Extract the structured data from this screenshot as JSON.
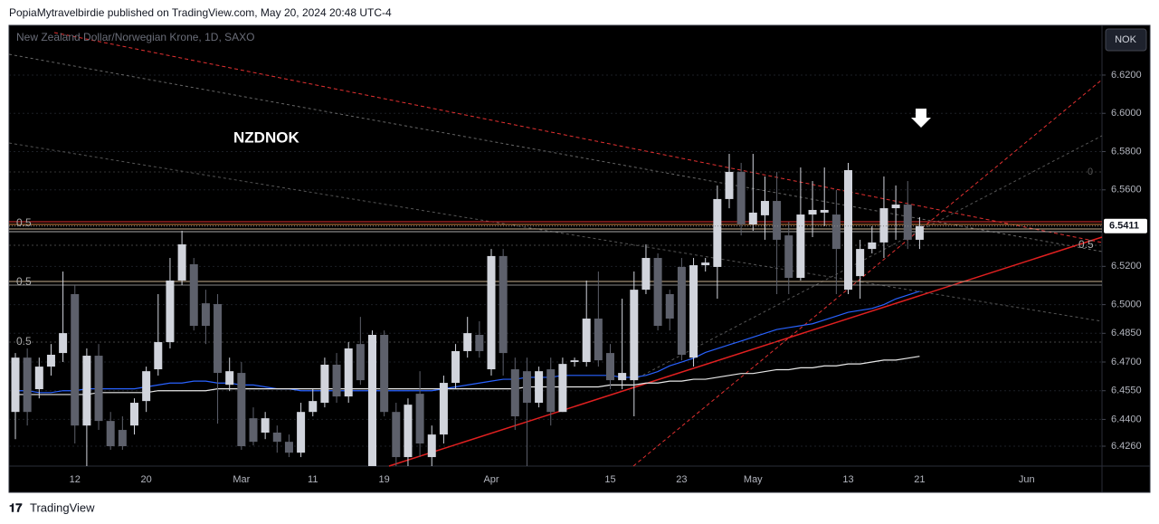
{
  "header": {
    "text": "PopiaMytravelbirdie published on TradingView.com, May 20, 2024 20:48 UTC-4"
  },
  "footer": {
    "brand": "TradingView"
  },
  "chart_data": {
    "type": "candlestick",
    "title": "NZDNOK",
    "subtitle": "New Zealand Dollar/Norwegian Krone, 1D, SAXO",
    "currency": "NOK",
    "categories": [
      null,
      null,
      null,
      null,
      null,
      "12",
      null,
      null,
      null,
      null,
      null,
      "20",
      null,
      null,
      null,
      null,
      null,
      null,
      null,
      "Mar",
      null,
      null,
      null,
      null,
      null,
      "11",
      null,
      null,
      null,
      null,
      null,
      "19",
      null,
      null,
      null,
      null,
      null,
      null,
      null,
      null,
      "Apr",
      null,
      null,
      null,
      null,
      null,
      null,
      null,
      null,
      null,
      "15",
      null,
      null,
      null,
      null,
      null,
      "23",
      null,
      null,
      null,
      null,
      null,
      "May",
      null,
      null,
      null,
      null,
      null,
      null,
      null,
      "13",
      null,
      null,
      null,
      null,
      null,
      "21",
      null,
      null,
      null,
      null,
      null,
      null,
      null,
      null,
      "Jun",
      null,
      null,
      null,
      null,
      null,
      null
    ],
    "open": [
      6.4439,
      6.4723,
      6.4558,
      6.4676,
      6.4747,
      6.5055,
      6.4368,
      6.4733,
      6.4392,
      6.4345,
      6.4368,
      6.4496,
      6.4662,
      6.4804,
      6.5126,
      6.5211,
      6.5007,
      6.5003,
      6.4581,
      6.4643,
      6.4406,
      6.4331,
      6.4331,
      6.4283,
      6.4226,
      6.4439,
      6.4487,
      6.4686,
      6.452,
      6.4794,
      6.4156,
      6.4842,
      6.4439,
      6.4203,
      6.4534,
      6.4203,
      6.4321,
      6.4591,
      6.4757,
      6.4842,
      6.4662,
      6.5254,
      6.4662,
      6.4652,
      6.4487,
      6.4662,
      6.4439,
      6.47,
      6.47,
      6.4927,
      6.4747,
      6.4605,
      6.4605,
      6.5078,
      6.5244,
      6.5055,
      6.5197,
      6.4723,
      6.5206,
      6.5197,
      6.5552,
      6.5694,
      6.5419,
      6.5467,
      6.5542,
      6.5362,
      6.514,
      6.5471,
      6.5481,
      6.5471,
      6.5078,
      6.5149,
      6.5291,
      6.5325,
      6.5504,
      6.5523,
      6.5339,
      null,
      null,
      null,
      null,
      null,
      null,
      null,
      null,
      null,
      null,
      null,
      null,
      null,
      null,
      null
    ],
    "high": [
      6.4747,
      6.4771,
      6.4723,
      6.4794,
      6.5173,
      6.5102,
      6.4771,
      6.4794,
      6.4439,
      6.4416,
      6.451,
      6.4676,
      6.5055,
      6.5244,
      6.5386,
      6.5244,
      6.5078,
      6.5055,
      6.4723,
      6.47,
      6.4463,
      6.4439,
      6.4368,
      6.4321,
      6.4487,
      6.4558,
      6.4723,
      6.4747,
      6.4804,
      6.4936,
      6.4865,
      6.4865,
      6.4487,
      6.451,
      6.4652,
      6.4368,
      6.4629,
      6.4794,
      6.4936,
      6.4913,
      6.5291,
      6.5291,
      6.4723,
      6.4723,
      6.4676,
      6.4723,
      6.4723,
      6.4723,
      6.5126,
      6.5173,
      6.4794,
      6.5031,
      6.5173,
      6.5315,
      6.5268,
      6.5078,
      6.5244,
      6.5244,
      6.5244,
      6.5623,
      6.5788,
      6.5741,
      6.5788,
      6.567,
      6.5694,
      6.5433,
      6.5717,
      6.5646,
      6.5717,
      6.5599,
      6.5741,
      6.5339,
      6.541,
      6.567,
      6.5623,
      6.5646,
      6.5457,
      null,
      null,
      null,
      null,
      null,
      null,
      null,
      null,
      null,
      null,
      null,
      null,
      null,
      null,
      null
    ],
    "low": [
      6.4297,
      6.4368,
      6.451,
      6.4629,
      6.47,
      6.4274,
      6.4156,
      6.4345,
      6.4241,
      6.4241,
      6.4321,
      6.4439,
      6.4629,
      6.4771,
      6.5102,
      6.4865,
      6.4794,
      6.4378,
      6.4548,
      6.4241,
      6.4264,
      6.4297,
      6.4226,
      6.4203,
      6.4203,
      6.4416,
      6.4463,
      6.4487,
      6.4487,
      6.4581,
      6.4156,
      6.4416,
      6.4156,
      6.4156,
      6.4203,
      6.4156,
      6.4274,
      6.4558,
      6.4723,
      6.4723,
      6.4629,
      6.4629,
      6.4345,
      6.4156,
      6.4463,
      6.4368,
      6.4439,
      6.4676,
      6.4676,
      6.4676,
      6.4558,
      6.4558,
      6.4416,
      6.5055,
      6.4865,
      6.4865,
      6.4709,
      6.4676,
      6.5173,
      6.5031,
      6.5504,
      6.5362,
      6.5386,
      6.5339,
      6.5055,
      6.5055,
      6.5126,
      6.5353,
      6.541,
      6.5055,
      6.5055,
      6.5031,
      6.5268,
      6.5244,
      6.5339,
      6.5291,
      6.5291,
      null,
      null,
      null,
      null,
      null,
      null,
      null,
      null,
      null,
      null,
      null,
      null,
      null,
      null,
      null
    ],
    "close": [
      6.4723,
      6.4439,
      6.4676,
      6.4738,
      6.4851,
      6.4368,
      6.4733,
      6.4392,
      6.426,
      6.426,
      6.4487,
      6.4652,
      6.4804,
      6.5126,
      6.5315,
      6.4889,
      6.4889,
      6.4643,
      6.4652,
      6.426,
      6.4283,
      6.4406,
      6.4283,
      6.4226,
      6.4439,
      6.4496,
      6.4686,
      6.452,
      6.4771,
      6.4605,
      6.4842,
      6.4439,
      6.4203,
      6.4477,
      6.4274,
      6.4321,
      6.4591,
      6.4757,
      6.4851,
      6.4757,
      6.5254,
      6.4747,
      6.4416,
      6.4487,
      6.4652,
      6.4439,
      6.469,
      6.4709,
      6.4927,
      6.4709,
      6.4605,
      6.4643,
      6.5078,
      6.5244,
      6.4889,
      6.4927,
      6.4738,
      6.5206,
      6.522,
      6.5552,
      6.5694,
      6.5419,
      6.5481,
      6.5542,
      6.5339,
      6.514,
      6.5471,
      6.5495,
      6.5495,
      6.5291,
      6.5703,
      6.5291,
      6.5325,
      6.5504,
      6.5523,
      6.5339,
      6.5411,
      null,
      null,
      null,
      null,
      null,
      null,
      null,
      null,
      null,
      null,
      null,
      null,
      null,
      null,
      null
    ],
    "up_color": "#d1d4dc",
    "down_color": "#5d606b",
    "lines": [
      {
        "color": "#2962ff",
        "values": [
          6.455,
          6.455,
          6.454,
          6.454,
          6.455,
          6.455,
          6.456,
          6.456,
          6.456,
          6.456,
          6.456,
          6.457,
          6.458,
          6.459,
          6.459,
          6.46,
          6.46,
          6.459,
          6.459,
          6.458,
          6.458,
          6.457,
          6.456,
          6.456,
          6.455,
          6.455,
          6.455,
          6.455,
          6.455,
          6.455,
          6.455,
          6.455,
          6.455,
          6.455,
          6.455,
          6.455,
          6.456,
          6.457,
          6.458,
          6.459,
          6.46,
          6.461,
          6.461,
          6.462,
          6.462,
          6.462,
          6.463,
          6.463,
          6.463,
          6.463,
          6.463,
          6.462,
          6.462,
          6.463,
          6.465,
          6.468,
          6.47,
          6.472,
          6.475,
          6.477,
          6.479,
          6.481,
          6.483,
          6.485,
          6.487,
          6.488,
          6.489,
          6.49,
          6.492,
          6.494,
          6.496,
          6.497,
          6.498,
          6.5,
          6.503,
          6.505,
          6.507,
          null,
          null,
          null,
          null,
          null,
          null,
          null,
          null,
          null,
          null,
          null,
          null,
          null,
          null,
          null
        ]
      },
      {
        "color": "#e8e8e8",
        "values": [
          6.453,
          6.453,
          6.453,
          6.453,
          6.453,
          6.453,
          6.453,
          6.454,
          6.454,
          6.454,
          6.454,
          6.454,
          6.455,
          6.455,
          6.455,
          6.455,
          6.455,
          6.456,
          6.456,
          6.456,
          6.456,
          6.456,
          6.456,
          6.456,
          6.456,
          6.456,
          6.456,
          6.456,
          6.456,
          6.456,
          6.456,
          6.456,
          6.456,
          6.456,
          6.456,
          6.456,
          6.456,
          6.456,
          6.456,
          6.456,
          6.456,
          6.456,
          6.456,
          6.457,
          6.457,
          6.457,
          6.457,
          6.457,
          6.457,
          6.457,
          6.458,
          6.458,
          6.458,
          6.459,
          6.459,
          6.46,
          6.46,
          6.461,
          6.461,
          6.462,
          6.463,
          6.464,
          6.464,
          6.465,
          6.466,
          6.466,
          6.467,
          6.467,
          6.468,
          6.468,
          6.469,
          6.469,
          6.47,
          6.471,
          6.471,
          6.472,
          6.473,
          null,
          null,
          null,
          null,
          null,
          null,
          null,
          null,
          null,
          null,
          null,
          null,
          null,
          null,
          null
        ]
      }
    ],
    "ylim": [
      6.4156,
      6.646
    ],
    "yticks": [
      {
        "value": 6.426,
        "label": "6.4260"
      },
      {
        "value": 6.44,
        "label": "6.4400"
      },
      {
        "value": 6.455,
        "label": "6.4550"
      },
      {
        "value": 6.47,
        "label": "6.4700"
      },
      {
        "value": 6.485,
        "label": "6.4850"
      },
      {
        "value": 6.5,
        "label": "6.5000"
      },
      {
        "value": 6.52,
        "label": "6.5200"
      },
      {
        "value": 6.56,
        "label": "6.5600"
      },
      {
        "value": 6.58,
        "label": "6.5800"
      },
      {
        "value": 6.6,
        "label": "6.6000"
      },
      {
        "value": 6.62,
        "label": "6.6200"
      }
    ],
    "grid": true,
    "last_price_label": "6.5411",
    "fib_labels": [
      "0.5",
      "0.5",
      "0.5",
      "0.5",
      "0"
    ]
  }
}
